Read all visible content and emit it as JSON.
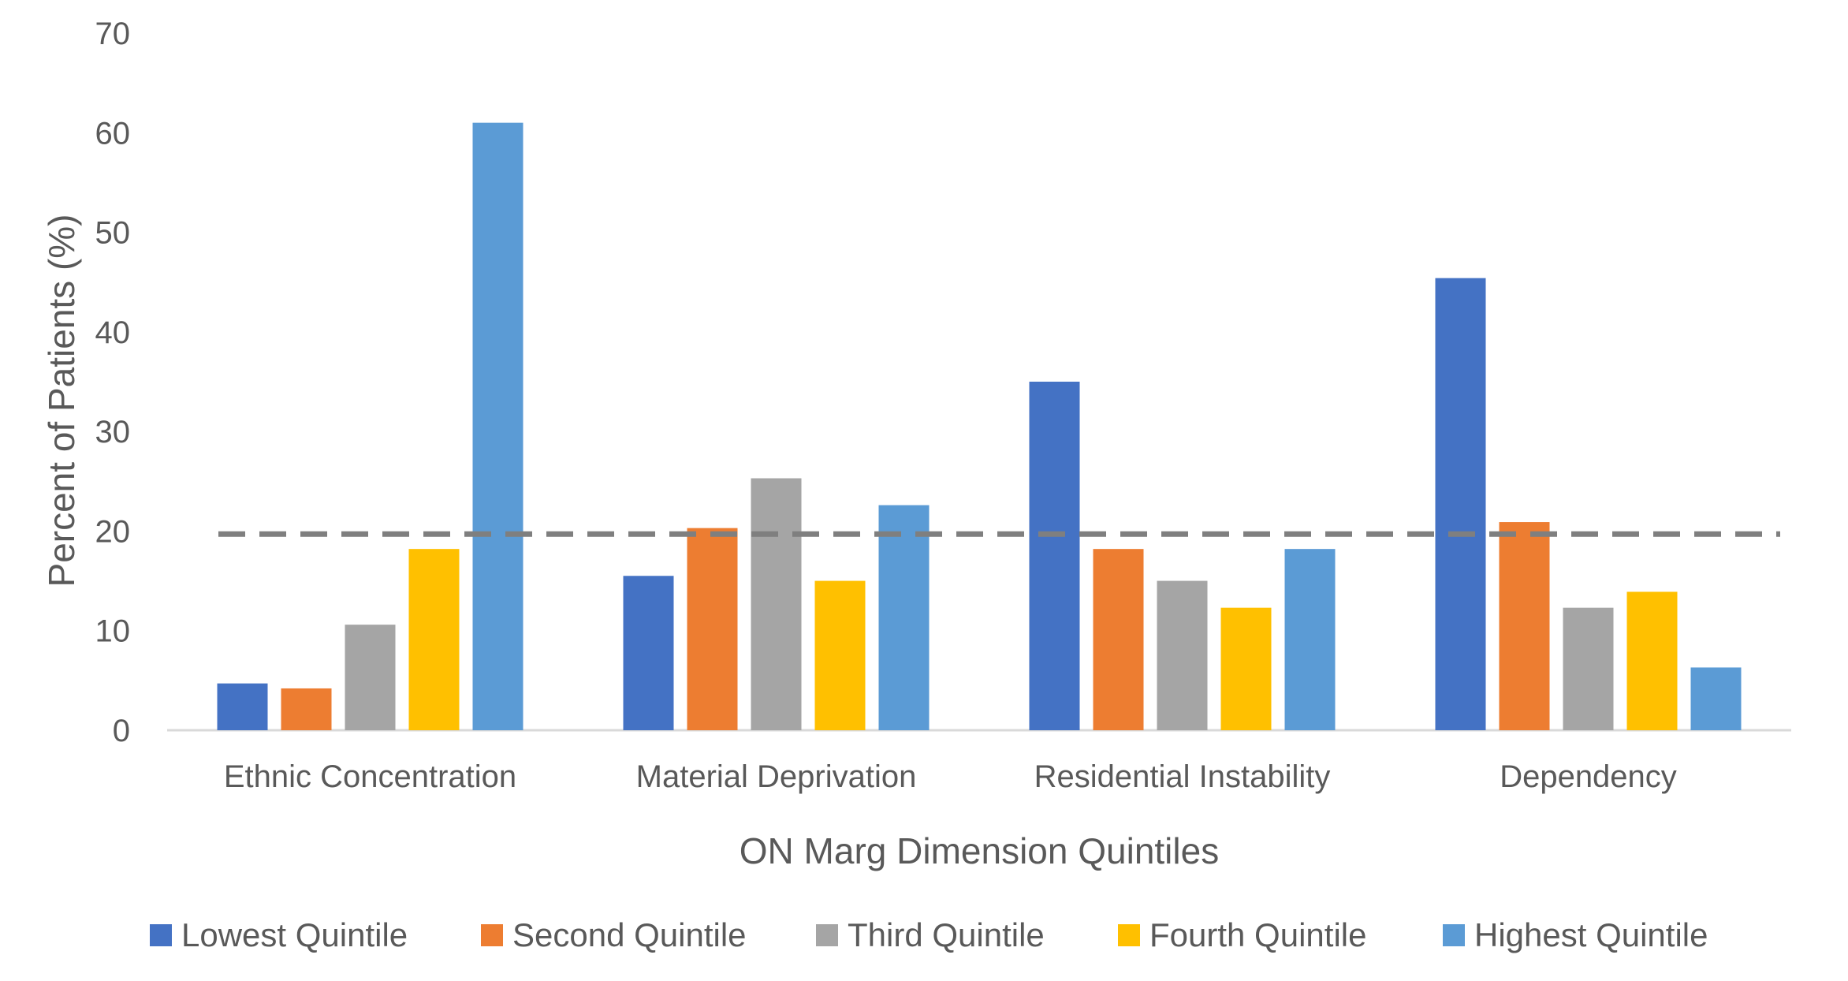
{
  "chart_data": {
    "type": "bar",
    "title": "",
    "xlabel": "ON Marg  Dimension Quintiles",
    "ylabel": "Percent of Patients (%)",
    "ylim": [
      0,
      70
    ],
    "yticks": [
      0,
      10,
      20,
      30,
      40,
      50,
      60,
      70
    ],
    "grid": false,
    "legend_position": "bottom",
    "categories": [
      "Ethnic Concentration",
      "Material Deprivation",
      "Residential Instability",
      "Dependency"
    ],
    "series": [
      {
        "name": "Lowest Quintile",
        "color": "#4472C4",
        "values": [
          4.7,
          15.5,
          35.0,
          45.4
        ]
      },
      {
        "name": "Second Quintile",
        "color": "#ED7D31",
        "values": [
          4.2,
          20.3,
          18.2,
          20.9
        ]
      },
      {
        "name": "Third Quintile",
        "color": "#A5A5A5",
        "values": [
          10.6,
          25.3,
          15.0,
          12.3
        ]
      },
      {
        "name": "Fourth Quintile",
        "color": "#FFC000",
        "values": [
          18.2,
          15.0,
          12.3,
          13.9
        ]
      },
      {
        "name": "Highest Quintile",
        "color": "#5B9BD5",
        "values": [
          61.0,
          22.6,
          18.2,
          6.3
        ]
      }
    ],
    "reference_line": {
      "value": 19.7,
      "style": "dashed",
      "color": "#7F7F7F"
    }
  }
}
